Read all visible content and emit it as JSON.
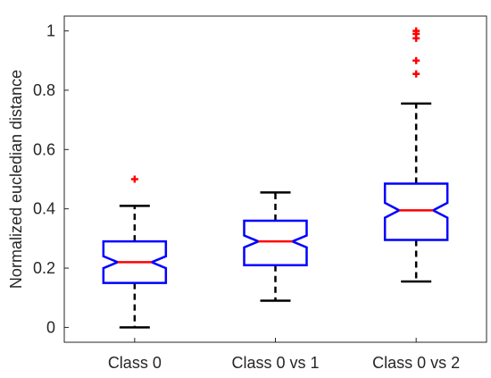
{
  "chart_data": {
    "type": "box",
    "title": "",
    "xlabel": "",
    "ylabel": "Normalized eucledian distance",
    "ylim": [
      -0.05,
      1.05
    ],
    "yticks": [
      0,
      0.2,
      0.4,
      0.6,
      0.8,
      1
    ],
    "ytick_labels": [
      "0",
      "0.2",
      "0.4",
      "0.6",
      "0.8",
      "1"
    ],
    "categories": [
      "Class 0",
      "Class 0 vs 1",
      "Class 0 vs 2"
    ],
    "notched": true,
    "grid": false,
    "boxes": [
      {
        "category": "Class 0",
        "whisker_low": 0.0,
        "q1": 0.15,
        "median": 0.22,
        "q3": 0.29,
        "whisker_high": 0.41,
        "notch_low": 0.2,
        "notch_high": 0.24,
        "outliers": [
          0.5
        ]
      },
      {
        "category": "Class 0 vs 1",
        "whisker_low": 0.09,
        "q1": 0.21,
        "median": 0.29,
        "q3": 0.36,
        "whisker_high": 0.455,
        "notch_low": 0.27,
        "notch_high": 0.31,
        "outliers": []
      },
      {
        "category": "Class 0 vs 2",
        "whisker_low": 0.155,
        "q1": 0.295,
        "median": 0.395,
        "q3": 0.485,
        "whisker_high": 0.755,
        "notch_low": 0.37,
        "notch_high": 0.42,
        "outliers": [
          0.855,
          0.9,
          0.975,
          0.99,
          1.0
        ]
      }
    ],
    "colors": {
      "box": "#0000ff",
      "median": "#ff0000",
      "whisker": "#000000",
      "outlier": "#ff0000",
      "axis": "#262626"
    }
  }
}
